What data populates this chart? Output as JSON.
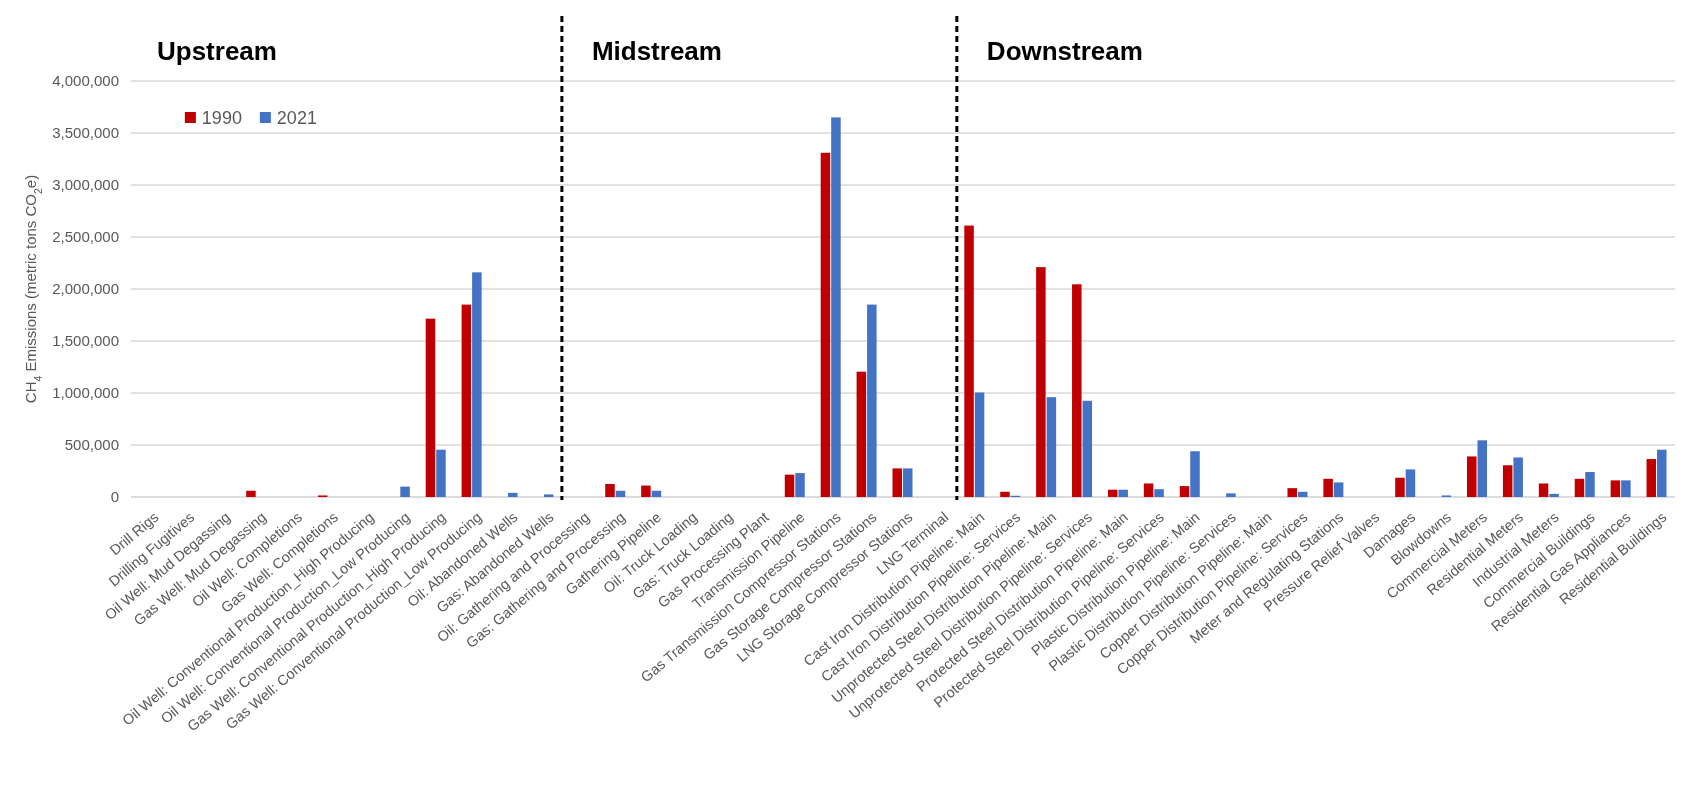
{
  "chart_data": {
    "type": "bar",
    "ylabel": "CH$_{4}$ Emissions (metric tons CO$_{2}$e)",
    "categories": [
      "Drill Rigs",
      "Drilling Fugitives",
      "Oil Well: Mud Degassing",
      "Gas Well: Mud Degassing",
      "Oil Well: Completions",
      "Gas Well: Completions",
      "Oil Well: Conventional Production_High Producing",
      "Oil Well: Conventional Production_Low Producing",
      "Gas Well: Conventional Production_High Producing",
      "Gas Well: Conventional Production_Low Producing",
      "Oil: Abandoned Wells",
      "Gas: Abandoned Wells",
      "Oil: Gathering and Processing",
      "Gas: Gathering and Processing",
      "Gathering Pipeline",
      "Oil: Truck Loading",
      "Gas: Truck Loading",
      "Gas Processing Plant",
      "Transmission Pipeline",
      "Gas Transmission Compressor Stations",
      "Gas Storage Compressor Stations",
      "LNG Storage Compressor Stations",
      "LNG Terminal",
      "Cast Iron Distribution Pipeline: Main",
      "Cast Iron Distribution Pipeline: Services",
      "Unprotected Steel Distribution Pipeline: Main",
      "Unprotected Steel Distribution Pipeline: Services",
      "Protected Steel Distribution Pipeline: Main",
      "Protected Steel Distribution Pipeline: Services",
      "Plastic Distribution Pipeline: Main",
      "Plastic Distribution Pipeline: Services",
      "Copper Distribution Pipeline: Main",
      "Copper Distribution Pipeline: Services",
      "Meter and Regulating Stations",
      "Pressure Relief Valves",
      "Damages",
      "Blowdowns",
      "Commercial Meters",
      "Residential Meters",
      "Industrial Meters",
      "Commercial Buildings",
      "Residential Gas Appliances",
      "Residential Buildings"
    ],
    "series": [
      {
        "name": "1990",
        "color": "#c00000",
        "values": [
          0,
          0,
          0,
          60000,
          0,
          15000,
          0,
          0,
          1715000,
          1850000,
          0,
          0,
          0,
          125000,
          110000,
          0,
          0,
          0,
          215000,
          3310000,
          1205000,
          275000,
          0,
          2610000,
          50000,
          2210000,
          2045000,
          70000,
          130000,
          105000,
          0,
          0,
          85000,
          175000,
          0,
          185000,
          0,
          390000,
          305000,
          130000,
          175000,
          160000,
          365000
        ]
      },
      {
        "name": "2021",
        "color": "#4472c4",
        "values": [
          0,
          0,
          0,
          0,
          0,
          0,
          0,
          100000,
          455000,
          2160000,
          40000,
          25000,
          0,
          60000,
          60000,
          0,
          0,
          0,
          230000,
          3650000,
          1850000,
          275000,
          0,
          1005000,
          12000,
          960000,
          925000,
          70000,
          75000,
          440000,
          35000,
          0,
          50000,
          140000,
          0,
          265000,
          15000,
          545000,
          380000,
          30000,
          240000,
          160000,
          455000
        ]
      }
    ],
    "ylim": [
      0,
      4000000
    ],
    "yticks": [
      {
        "value": 0,
        "label": "0"
      },
      {
        "value": 500000,
        "label": "500,000"
      },
      {
        "value": 1000000,
        "label": "1,000,000"
      },
      {
        "value": 1500000,
        "label": "1,500,000"
      },
      {
        "value": 2000000,
        "label": "2,000,000"
      },
      {
        "value": 2500000,
        "label": "2,500,000"
      },
      {
        "value": 3000000,
        "label": "3,000,000"
      },
      {
        "value": 3500000,
        "label": "3,500,000"
      },
      {
        "value": 4000000,
        "label": "4,000,000"
      }
    ],
    "grid": "y",
    "legend": "top left",
    "annotations": [
      "Upstream",
      "Midstream",
      "Downstream"
    ]
  }
}
